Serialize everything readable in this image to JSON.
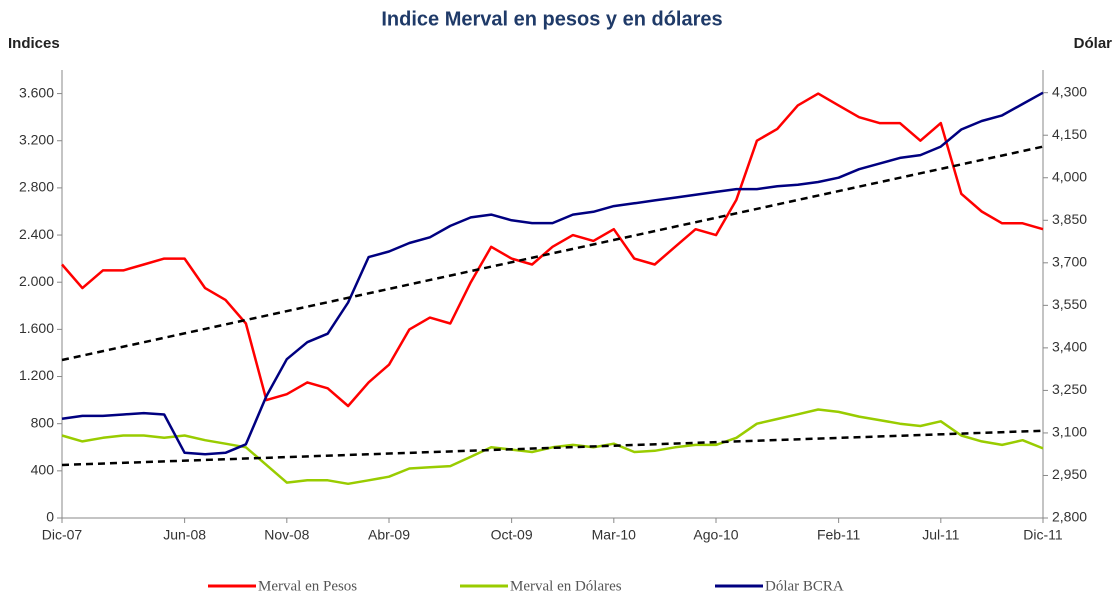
{
  "chart_data": {
    "type": "line",
    "title": "Indice Merval en pesos y en dólares",
    "y_label": "Indices",
    "y2_label": "Dólar",
    "x": [
      "Dic-07",
      null,
      null,
      null,
      null,
      null,
      "Jun-08",
      null,
      null,
      null,
      null,
      "Nov-08",
      null,
      null,
      null,
      null,
      "Abr-09",
      null,
      null,
      null,
      null,
      null,
      "Oct-09",
      null,
      null,
      null,
      null,
      "Mar-10",
      null,
      null,
      null,
      null,
      "Ago-10",
      null,
      null,
      null,
      null,
      null,
      "Feb-11",
      null,
      null,
      null,
      null,
      "Jul-11",
      null,
      null,
      null,
      null,
      "Dic-11"
    ],
    "ylim": [
      0,
      3800
    ],
    "yticks": [
      0,
      400,
      800,
      {
        "value": 1200,
        "label": "1.200"
      },
      {
        "value": 1600,
        "label": "1.600"
      },
      {
        "value": 2000,
        "label": "2.000"
      },
      {
        "value": 2400,
        "label": "2.400"
      },
      {
        "value": 2800,
        "label": "2.800"
      },
      {
        "value": 3200,
        "label": "3.200"
      },
      {
        "value": 3600,
        "label": "3.600"
      }
    ],
    "y2lim": [
      2800,
      4380
    ],
    "y2ticks": [
      {
        "value": 2800,
        "label": "2,800"
      },
      {
        "value": 2950,
        "label": "2,950"
      },
      {
        "value": 3100,
        "label": "3,100"
      },
      {
        "value": 3250,
        "label": "3,250"
      },
      {
        "value": 3400,
        "label": "3,400"
      },
      {
        "value": 3550,
        "label": "3,550"
      },
      {
        "value": 3700,
        "label": "3,700"
      },
      {
        "value": 3850,
        "label": "3,850"
      },
      {
        "value": 4000,
        "label": "4,000"
      },
      {
        "value": 4150,
        "label": "4,150"
      },
      {
        "value": 4300,
        "label": "4,300"
      }
    ],
    "series": [
      {
        "name": "Merval en Pesos",
        "color": "#ff0000",
        "values": [
          2150,
          1950,
          2100,
          2100,
          2150,
          2200,
          2200,
          1950,
          1850,
          1650,
          1000,
          1050,
          1150,
          1100,
          950,
          1150,
          1300,
          1600,
          1700,
          1650,
          2000,
          2300,
          2200,
          2150,
          2300,
          2400,
          2350,
          2450,
          2200,
          2150,
          2300,
          2450,
          2400,
          2700,
          3200,
          3300,
          3500,
          3600,
          3500,
          3400,
          3350,
          3350,
          3200,
          3350,
          2750,
          2600,
          2500,
          2500,
          2450
        ]
      },
      {
        "name": "Merval en Dólares",
        "color": "#99cc00",
        "values": [
          700,
          650,
          680,
          700,
          700,
          680,
          700,
          660,
          630,
          600,
          450,
          300,
          320,
          320,
          290,
          320,
          350,
          420,
          430,
          440,
          520,
          600,
          580,
          560,
          600,
          620,
          600,
          630,
          560,
          570,
          600,
          620,
          620,
          680,
          800,
          840,
          880,
          920,
          900,
          860,
          830,
          800,
          780,
          820,
          700,
          650,
          620,
          660,
          590
        ]
      },
      {
        "name": "Dólar BCRA",
        "color": "#000080",
        "axis": "y2",
        "values": [
          3150,
          3160,
          3160,
          3165,
          3170,
          3165,
          3030,
          3025,
          3030,
          3060,
          3230,
          3360,
          3420,
          3450,
          3560,
          3720,
          3740,
          3770,
          3790,
          3830,
          3860,
          3870,
          3850,
          3840,
          3840,
          3870,
          3880,
          3900,
          3910,
          3920,
          3930,
          3940,
          3950,
          3960,
          3960,
          3970,
          3975,
          3985,
          4000,
          4030,
          4050,
          4070,
          4080,
          4110,
          4170,
          4200,
          4220,
          4260,
          4300
        ]
      }
    ],
    "trendlines": [
      {
        "color": "#000000",
        "start": 1340,
        "end": 3150
      },
      {
        "color": "#000000",
        "start": 450,
        "end": 740
      }
    ]
  }
}
